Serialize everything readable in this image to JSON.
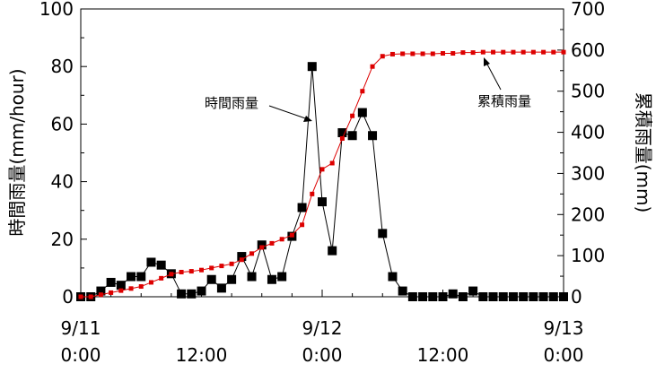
{
  "chart_data": {
    "type": "line",
    "x_unit": "hours",
    "xlim": [
      0,
      48
    ],
    "xticks": [
      {
        "x": 0,
        "label": "9/11",
        "sub": "0:00"
      },
      {
        "x": 12,
        "label": "",
        "sub": "12:00"
      },
      {
        "x": 24,
        "label": "9/12",
        "sub": "0:00"
      },
      {
        "x": 36,
        "label": "",
        "sub": "12:00"
      },
      {
        "x": 48,
        "label": "9/13",
        "sub": "0:00"
      }
    ],
    "y_left": {
      "label": "時間雨量(mm/hour)",
      "lim": [
        0,
        100
      ],
      "ticks": [
        0,
        20,
        40,
        60,
        80,
        100
      ]
    },
    "y_right": {
      "label": "累積雨量(mm)",
      "lim": [
        0,
        700
      ],
      "ticks": [
        0,
        100,
        200,
        300,
        400,
        500,
        600,
        700
      ]
    },
    "series": [
      {
        "name": "時間雨量",
        "axis": "left",
        "color": "#000000",
        "marker": "square",
        "x": [
          0,
          1,
          2,
          3,
          4,
          5,
          6,
          7,
          8,
          9,
          10,
          11,
          12,
          13,
          14,
          15,
          16,
          17,
          18,
          19,
          20,
          21,
          22,
          23,
          24,
          25,
          26,
          27,
          28,
          29,
          30,
          31,
          32,
          33,
          34,
          35,
          36,
          37,
          38,
          39,
          40,
          41,
          42,
          43,
          44,
          45,
          46,
          47,
          48
        ],
        "values": [
          0,
          0,
          2,
          5,
          4,
          7,
          7,
          12,
          11,
          8,
          1,
          1,
          2,
          6,
          3,
          6,
          14,
          7,
          18,
          6,
          7,
          21,
          31,
          80,
          33,
          16,
          57,
          56,
          64,
          56,
          22,
          7,
          2,
          0,
          0,
          0,
          0,
          1,
          0,
          2,
          0,
          0,
          0,
          0,
          0,
          0,
          0,
          0,
          0
        ]
      },
      {
        "name": "累積雨量",
        "axis": "right",
        "color": "#dd0000",
        "marker": "small-square",
        "x": [
          0,
          1,
          2,
          3,
          4,
          5,
          6,
          7,
          8,
          9,
          10,
          11,
          12,
          13,
          14,
          15,
          16,
          17,
          18,
          19,
          20,
          21,
          22,
          23,
          24,
          25,
          26,
          27,
          28,
          29,
          30,
          31,
          32,
          33,
          34,
          35,
          36,
          37,
          38,
          39,
          40,
          41,
          42,
          43,
          44,
          45,
          46,
          47,
          48
        ],
        "values": [
          0,
          0,
          5,
          10,
          15,
          20,
          25,
          35,
          45,
          55,
          60,
          62,
          65,
          70,
          75,
          80,
          90,
          105,
          120,
          130,
          140,
          150,
          175,
          250,
          310,
          325,
          385,
          440,
          500,
          560,
          585,
          590,
          591,
          591,
          591,
          591,
          592,
          592,
          594,
          594,
          595,
          595,
          595,
          595,
          595,
          595,
          595,
          595,
          595
        ]
      }
    ],
    "annotations": [
      {
        "text": "時間雨量",
        "series": "時間雨量"
      },
      {
        "text": "累積雨量",
        "series": "累積雨量"
      }
    ]
  }
}
